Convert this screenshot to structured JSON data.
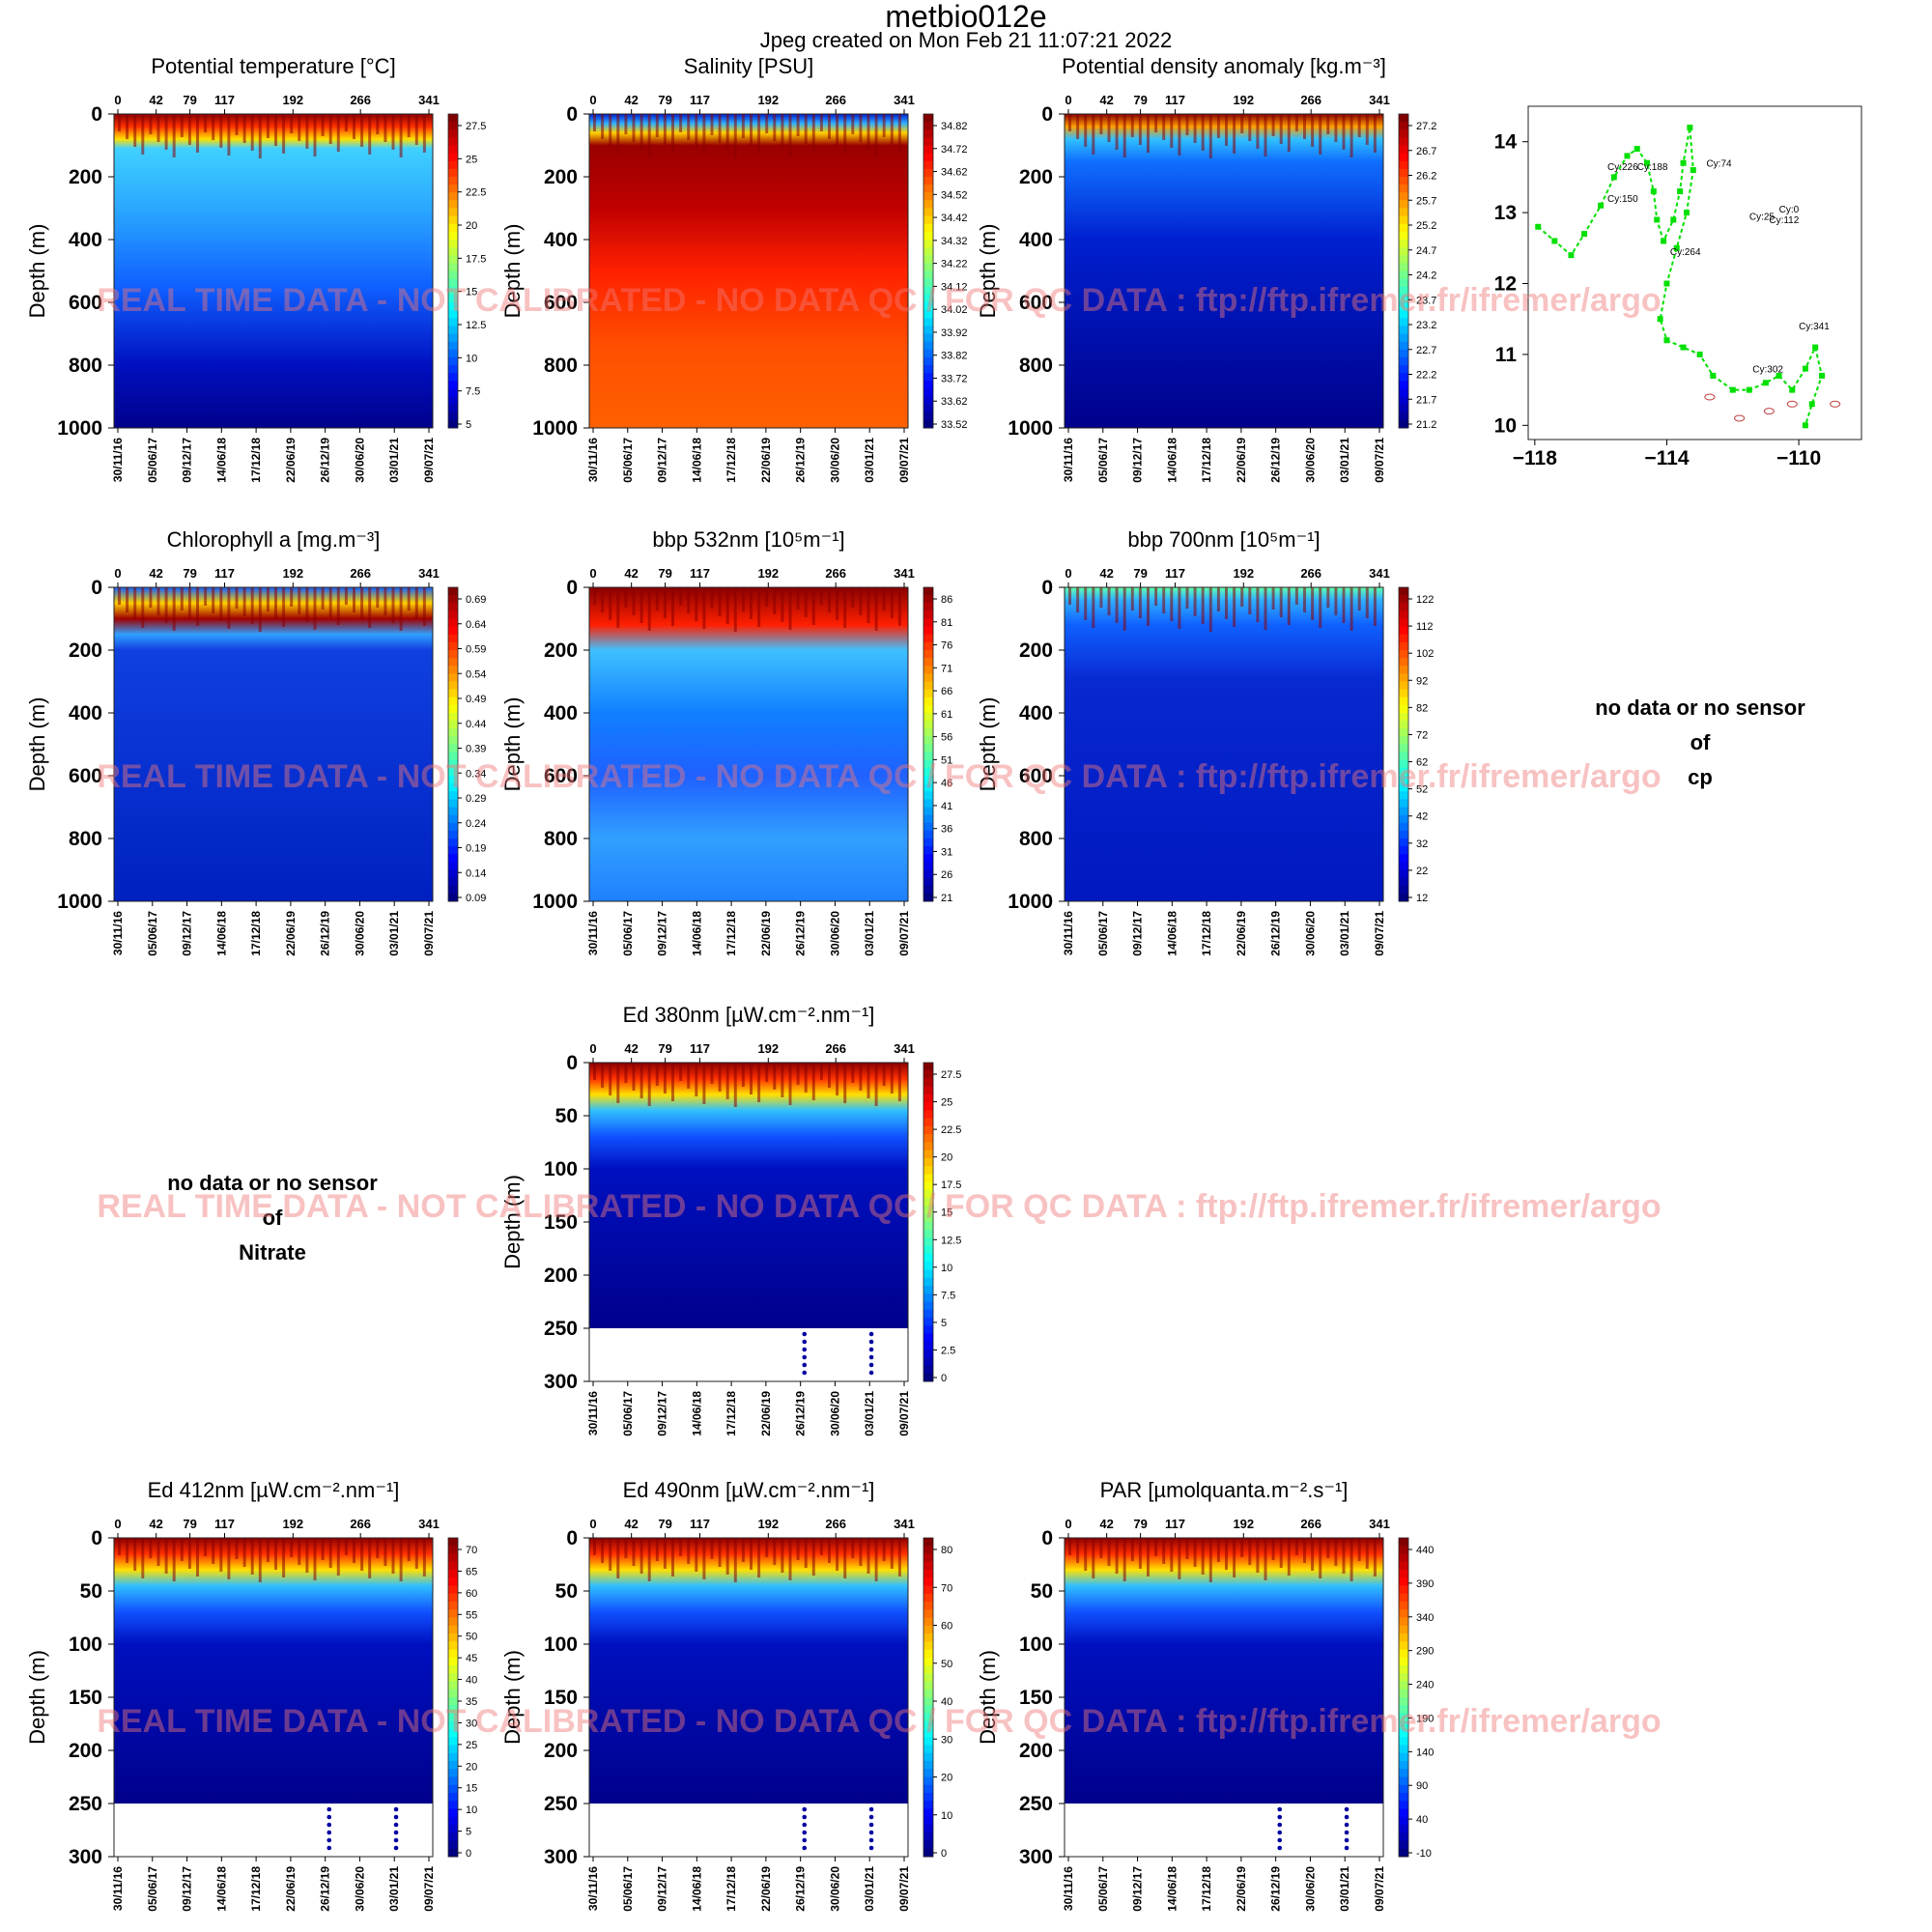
{
  "figure": {
    "title": "metbio012e",
    "subtitle": "Jpeg created on  Mon Feb 21 11:07:21 2022",
    "watermark": "REAL TIME DATA - NOT CALIBRATED - NO DATA QC  /  FOR QC DATA : ftp://ftp.ifremer.fr/ifremer/argo"
  },
  "chart_data": [
    {
      "type": "heatmap",
      "title": "Potential temperature [°C]",
      "ylabel": "Depth (m)",
      "cycle_ticks": [
        "0",
        "42",
        "79",
        "117",
        "192",
        "266",
        "341"
      ],
      "date_ticks": [
        "30/11/16",
        "05/06/17",
        "09/12/17",
        "14/06/18",
        "17/12/18",
        "22/06/19",
        "26/12/19",
        "30/06/20",
        "03/01/21",
        "09/07/21"
      ],
      "ylim": [
        0,
        1000
      ],
      "y_ticks": [
        0,
        200,
        400,
        600,
        800,
        1000
      ],
      "colorbar_ticks": [
        "27.5",
        "25",
        "22.5",
        "20",
        "17.5",
        "15",
        "12.5",
        "10",
        "7.5",
        "5"
      ]
    },
    {
      "type": "heatmap",
      "title": "Salinity [PSU]",
      "ylabel": "Depth (m)",
      "cycle_ticks": [
        "0",
        "42",
        "79",
        "117",
        "192",
        "266",
        "341"
      ],
      "date_ticks": [
        "30/11/16",
        "05/06/17",
        "09/12/17",
        "14/06/18",
        "17/12/18",
        "22/06/19",
        "26/12/19",
        "30/06/20",
        "03/01/21",
        "09/07/21"
      ],
      "ylim": [
        0,
        1000
      ],
      "y_ticks": [
        0,
        200,
        400,
        600,
        800,
        1000
      ],
      "colorbar_ticks": [
        "34.82",
        "34.72",
        "34.62",
        "34.52",
        "34.42",
        "34.32",
        "34.22",
        "34.12",
        "34.02",
        "33.92",
        "33.82",
        "33.72",
        "33.62",
        "33.52"
      ]
    },
    {
      "type": "heatmap",
      "title": "Potential density anomaly [kg.m⁻³]",
      "ylabel": "Depth (m)",
      "cycle_ticks": [
        "0",
        "42",
        "79",
        "117",
        "192",
        "266",
        "341"
      ],
      "date_ticks": [
        "30/11/16",
        "05/06/17",
        "09/12/17",
        "14/06/18",
        "17/12/18",
        "22/06/19",
        "26/12/19",
        "30/06/20",
        "03/01/21",
        "09/07/21"
      ],
      "ylim": [
        0,
        1000
      ],
      "y_ticks": [
        0,
        200,
        400,
        600,
        800,
        1000
      ],
      "colorbar_ticks": [
        "27.2",
        "26.7",
        "26.2",
        "25.7",
        "25.2",
        "24.7",
        "24.2",
        "23.7",
        "23.2",
        "22.7",
        "22.2",
        "21.7",
        "21.2"
      ]
    },
    {
      "type": "scatter",
      "title": "",
      "x_ticks": [
        -118,
        -114,
        -110
      ],
      "y_ticks": [
        10,
        11,
        12,
        13,
        14
      ],
      "xlim": [
        -118.2,
        -108.1
      ],
      "ylim": [
        9.8,
        14.5
      ],
      "track": [
        [
          -117.9,
          12.8
        ],
        [
          -117.4,
          12.6
        ],
        [
          -116.9,
          12.4
        ],
        [
          -116.5,
          12.7
        ],
        [
          -116.0,
          13.1
        ],
        [
          -115.6,
          13.5
        ],
        [
          -115.2,
          13.8
        ],
        [
          -114.9,
          13.9
        ],
        [
          -114.6,
          13.7
        ],
        [
          -114.4,
          13.3
        ],
        [
          -114.3,
          12.9
        ],
        [
          -114.1,
          12.6
        ],
        [
          -113.8,
          12.9
        ],
        [
          -113.6,
          13.3
        ],
        [
          -113.5,
          13.7
        ],
        [
          -113.3,
          14.2
        ],
        [
          -113.2,
          13.6
        ],
        [
          -113.4,
          13.0
        ],
        [
          -113.7,
          12.5
        ],
        [
          -114.0,
          12.0
        ],
        [
          -114.2,
          11.5
        ],
        [
          -114.0,
          11.2
        ],
        [
          -113.5,
          11.1
        ],
        [
          -113.0,
          11.0
        ],
        [
          -112.6,
          10.7
        ],
        [
          -112.0,
          10.5
        ],
        [
          -111.5,
          10.5
        ],
        [
          -111.0,
          10.6
        ],
        [
          -110.6,
          10.7
        ],
        [
          -110.2,
          10.5
        ],
        [
          -109.8,
          10.8
        ],
        [
          -109.5,
          11.1
        ],
        [
          -109.3,
          10.7
        ],
        [
          -109.6,
          10.3
        ],
        [
          -109.8,
          10.0
        ]
      ],
      "labels": [
        {
          "text": "Cy:226",
          "lon": -115.8,
          "lat": 13.6
        },
        {
          "text": "Cy:188",
          "lon": -114.9,
          "lat": 13.6
        },
        {
          "text": "Cy:74",
          "lon": -112.8,
          "lat": 13.65
        },
        {
          "text": "Cy:150",
          "lon": -115.8,
          "lat": 13.15
        },
        {
          "text": "Cy:0",
          "lon": -110.6,
          "lat": 13.0
        },
        {
          "text": "Cy:25",
          "lon": -111.5,
          "lat": 12.9
        },
        {
          "text": "Cy:112",
          "lon": -110.9,
          "lat": 12.85
        },
        {
          "text": "Cy:264",
          "lon": -113.9,
          "lat": 12.4
        },
        {
          "text": "Cy:341",
          "lon": -110.0,
          "lat": 11.35
        },
        {
          "text": "Cy:302",
          "lon": -111.4,
          "lat": 10.75
        }
      ]
    },
    {
      "type": "heatmap",
      "title": "Chlorophyll a [mg.m⁻³]",
      "ylabel": "Depth (m)",
      "cycle_ticks": [
        "0",
        "42",
        "79",
        "117",
        "192",
        "266",
        "341"
      ],
      "date_ticks": [
        "30/11/16",
        "05/06/17",
        "09/12/17",
        "14/06/18",
        "17/12/18",
        "22/06/19",
        "26/12/19",
        "30/06/20",
        "03/01/21",
        "09/07/21"
      ],
      "ylim": [
        0,
        1000
      ],
      "y_ticks": [
        0,
        200,
        400,
        600,
        800,
        1000
      ],
      "colorbar_ticks": [
        "0.69",
        "0.64",
        "0.59",
        "0.54",
        "0.49",
        "0.44",
        "0.39",
        "0.34",
        "0.29",
        "0.24",
        "0.19",
        "0.14",
        "0.09"
      ]
    },
    {
      "type": "heatmap",
      "title": "bbp 532nm [10⁵m⁻¹]",
      "ylabel": "Depth (m)",
      "cycle_ticks": [
        "0",
        "42",
        "79",
        "117",
        "192",
        "266",
        "341"
      ],
      "date_ticks": [
        "30/11/16",
        "05/06/17",
        "09/12/17",
        "14/06/18",
        "17/12/18",
        "22/06/19",
        "26/12/19",
        "30/06/20",
        "03/01/21",
        "09/07/21"
      ],
      "ylim": [
        0,
        1000
      ],
      "y_ticks": [
        0,
        200,
        400,
        600,
        800,
        1000
      ],
      "colorbar_ticks": [
        "86",
        "81",
        "76",
        "71",
        "66",
        "61",
        "56",
        "51",
        "46",
        "41",
        "36",
        "31",
        "26",
        "21"
      ]
    },
    {
      "type": "heatmap",
      "title": "bbp 700nm [10⁵m⁻¹]",
      "ylabel": "Depth (m)",
      "cycle_ticks": [
        "0",
        "42",
        "79",
        "117",
        "192",
        "266",
        "341"
      ],
      "date_ticks": [
        "30/11/16",
        "05/06/17",
        "09/12/17",
        "14/06/18",
        "17/12/18",
        "22/06/19",
        "26/12/19",
        "30/06/20",
        "03/01/21",
        "09/07/21"
      ],
      "ylim": [
        0,
        1000
      ],
      "y_ticks": [
        0,
        200,
        400,
        600,
        800,
        1000
      ],
      "colorbar_ticks": [
        "122",
        "112",
        "102",
        "92",
        "82",
        "72",
        "62",
        "52",
        "42",
        "32",
        "22",
        "12"
      ]
    },
    {
      "type": "heatmap",
      "title": "Ed 380nm [µW.cm⁻².nm⁻¹]",
      "ylabel": "Depth (m)",
      "cycle_ticks": [
        "0",
        "42",
        "79",
        "117",
        "192",
        "266",
        "341"
      ],
      "date_ticks": [
        "30/11/16",
        "05/06/17",
        "09/12/17",
        "14/06/18",
        "17/12/18",
        "22/06/19",
        "26/12/19",
        "30/06/20",
        "03/01/21",
        "09/07/21"
      ],
      "ylim": [
        0,
        300
      ],
      "y_ticks": [
        0,
        50,
        100,
        150,
        200,
        250,
        300
      ],
      "colorbar_ticks": [
        "27.5",
        "25",
        "22.5",
        "20",
        "17.5",
        "15",
        "12.5",
        "10",
        "7.5",
        "5",
        "2.5",
        "0"
      ]
    },
    {
      "type": "heatmap",
      "title": "Ed 412nm [µW.cm⁻².nm⁻¹]",
      "ylabel": "Depth (m)",
      "cycle_ticks": [
        "0",
        "42",
        "79",
        "117",
        "192",
        "266",
        "341"
      ],
      "date_ticks": [
        "30/11/16",
        "05/06/17",
        "09/12/17",
        "14/06/18",
        "17/12/18",
        "22/06/19",
        "26/12/19",
        "30/06/20",
        "03/01/21",
        "09/07/21"
      ],
      "ylim": [
        0,
        300
      ],
      "y_ticks": [
        0,
        50,
        100,
        150,
        200,
        250,
        300
      ],
      "colorbar_ticks": [
        "70",
        "65",
        "60",
        "55",
        "50",
        "45",
        "40",
        "35",
        "30",
        "25",
        "20",
        "15",
        "10",
        "5",
        "0"
      ]
    },
    {
      "type": "heatmap",
      "title": "Ed 490nm [µW.cm⁻².nm⁻¹]",
      "ylabel": "Depth (m)",
      "cycle_ticks": [
        "0",
        "42",
        "79",
        "117",
        "192",
        "266",
        "341"
      ],
      "date_ticks": [
        "30/11/16",
        "05/06/17",
        "09/12/17",
        "14/06/18",
        "17/12/18",
        "22/06/19",
        "26/12/19",
        "30/06/20",
        "03/01/21",
        "09/07/21"
      ],
      "ylim": [
        0,
        300
      ],
      "y_ticks": [
        0,
        50,
        100,
        150,
        200,
        250,
        300
      ],
      "colorbar_ticks": [
        "80",
        "70",
        "60",
        "50",
        "40",
        "30",
        "20",
        "10",
        "0"
      ]
    },
    {
      "type": "heatmap",
      "title": "PAR [µmolquanta.m⁻².s⁻¹]",
      "ylabel": "Depth (m)",
      "cycle_ticks": [
        "0",
        "42",
        "79",
        "117",
        "192",
        "266",
        "341"
      ],
      "date_ticks": [
        "30/11/16",
        "05/06/17",
        "09/12/17",
        "14/06/18",
        "17/12/18",
        "22/06/19",
        "26/12/19",
        "30/06/20",
        "03/01/21",
        "09/07/21"
      ],
      "ylim": [
        0,
        300
      ],
      "y_ticks": [
        0,
        50,
        100,
        150,
        200,
        250,
        300
      ],
      "colorbar_ticks": [
        "440",
        "390",
        "340",
        "290",
        "240",
        "190",
        "140",
        "90",
        "40",
        "-10"
      ]
    }
  ],
  "no_data_panels": [
    {
      "line1": "no data or no sensor",
      "line2": "of",
      "line3": "cp"
    },
    {
      "line1": "no data or no sensor",
      "line2": "of",
      "line3": "Nitrate"
    }
  ]
}
